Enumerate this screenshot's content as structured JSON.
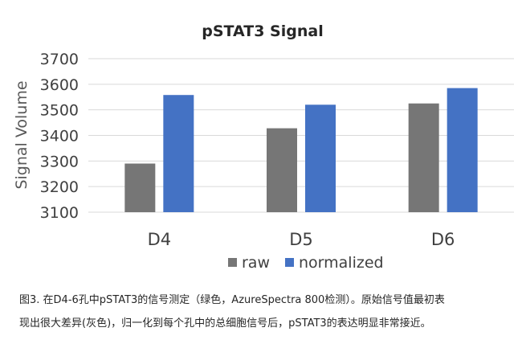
{
  "chart_data": {
    "type": "bar",
    "title": "pSTAT3 Signal",
    "ylabel": "Signal Volume",
    "xlabel": "",
    "ylim": [
      3100,
      3700
    ],
    "yticks": [
      3100,
      3200,
      3300,
      3400,
      3500,
      3600,
      3700
    ],
    "categories": [
      "D4",
      "D5",
      "D6"
    ],
    "series": [
      {
        "name": "raw",
        "values": [
          3290,
          3428,
          3525
        ],
        "color": "#767676"
      },
      {
        "name": "normalized",
        "values": [
          3558,
          3520,
          3585
        ],
        "color": "#4472c4"
      }
    ],
    "grid": true,
    "legend_position": "bottom"
  },
  "caption": {
    "line1": "图3. 在D4-6孔中pSTAT3的信号测定（绿色，AzureSpectra 800检测）。原始信号值最初表",
    "line2": "现出很大差异(灰色)，归一化到每个孔中的总细胞信号后，pSTAT3的表达明显非常接近。"
  }
}
